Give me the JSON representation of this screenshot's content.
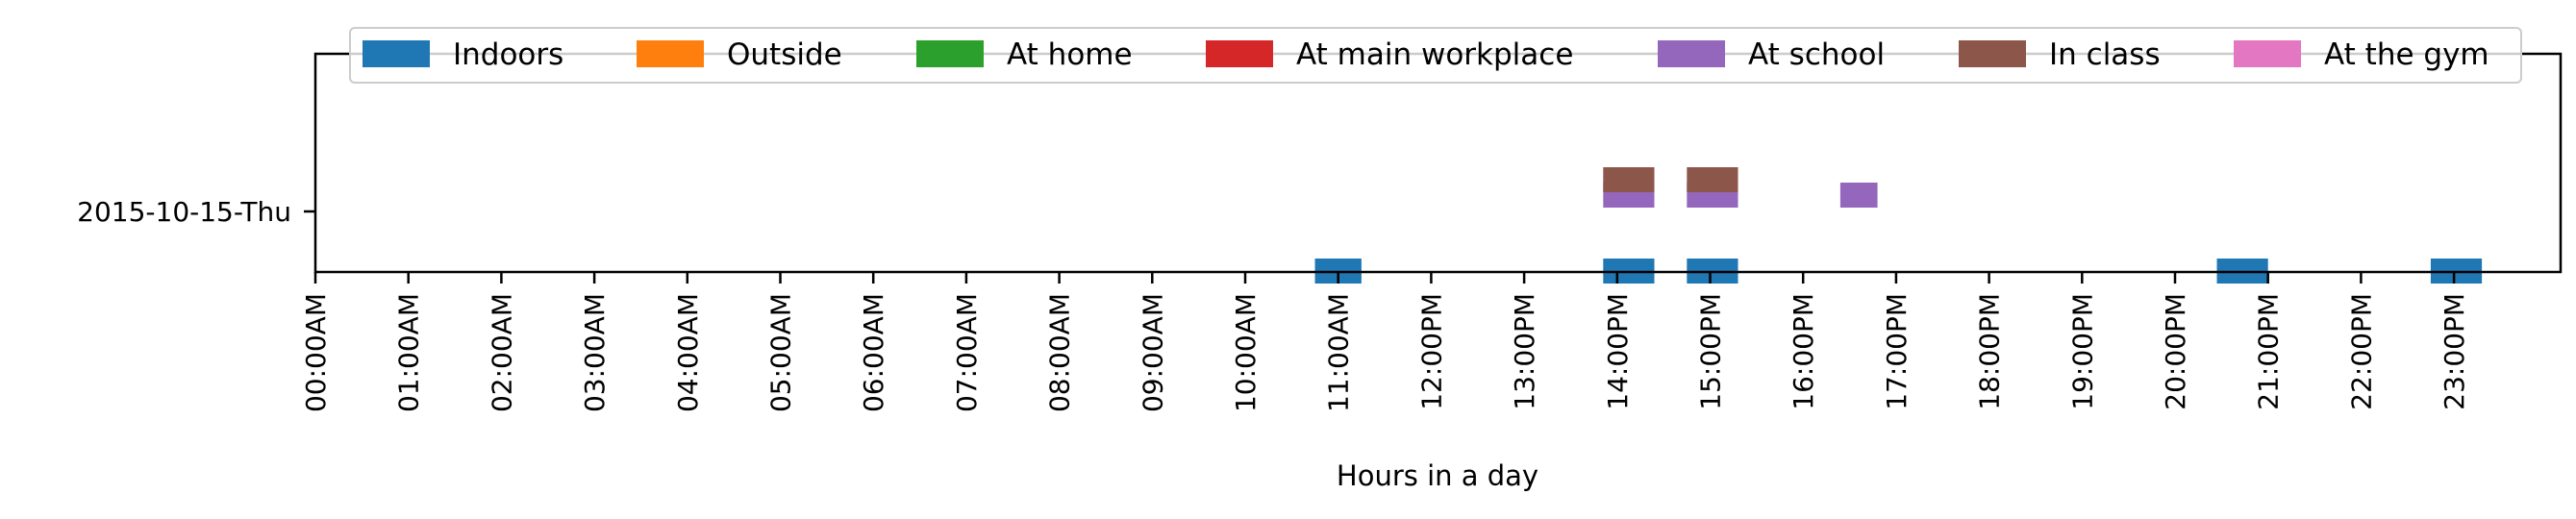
{
  "chart_data": {
    "type": "bar",
    "subtype": "timeline",
    "title": "",
    "xlabel": "Hours in a day",
    "ylabel": "",
    "x_unit": "hour of day",
    "xlim": [
      0,
      24
    ],
    "x_ticks": [
      {
        "hour": 0,
        "label": "00:00AM"
      },
      {
        "hour": 1,
        "label": "01:00AM"
      },
      {
        "hour": 2,
        "label": "02:00AM"
      },
      {
        "hour": 3,
        "label": "03:00AM"
      },
      {
        "hour": 4,
        "label": "04:00AM"
      },
      {
        "hour": 5,
        "label": "05:00AM"
      },
      {
        "hour": 6,
        "label": "06:00AM"
      },
      {
        "hour": 7,
        "label": "07:00AM"
      },
      {
        "hour": 8,
        "label": "08:00AM"
      },
      {
        "hour": 9,
        "label": "09:00AM"
      },
      {
        "hour": 10,
        "label": "10:00AM"
      },
      {
        "hour": 11,
        "label": "11:00AM"
      },
      {
        "hour": 12,
        "label": "12:00PM"
      },
      {
        "hour": 13,
        "label": "13:00PM"
      },
      {
        "hour": 14,
        "label": "14:00PM"
      },
      {
        "hour": 15,
        "label": "15:00PM"
      },
      {
        "hour": 16,
        "label": "16:00PM"
      },
      {
        "hour": 17,
        "label": "17:00PM"
      },
      {
        "hour": 18,
        "label": "18:00PM"
      },
      {
        "hour": 19,
        "label": "19:00PM"
      },
      {
        "hour": 20,
        "label": "20:00PM"
      },
      {
        "hour": 21,
        "label": "21:00PM"
      },
      {
        "hour": 22,
        "label": "22:00PM"
      },
      {
        "hour": 23,
        "label": "23:00PM"
      }
    ],
    "days": [
      "2015-10-15-Thu"
    ],
    "grid": false,
    "legend_position": "top",
    "series": [
      {
        "name": "Indoors",
        "color": "#1f77b4",
        "lane": 0,
        "intervals": [
          [
            10.75,
            11.25
          ],
          [
            13.85,
            14.4
          ],
          [
            14.75,
            15.3
          ],
          [
            20.45,
            21.0
          ],
          [
            22.75,
            23.3
          ]
        ]
      },
      {
        "name": "Outside",
        "color": "#ff7f0e",
        "lane": 1,
        "intervals": []
      },
      {
        "name": "At home",
        "color": "#2ca02c",
        "lane": 2,
        "intervals": []
      },
      {
        "name": "At main workplace",
        "color": "#d62728",
        "lane": 3,
        "intervals": []
      },
      {
        "name": "At school",
        "color": "#9467bd",
        "lane": 4,
        "intervals": [
          [
            13.85,
            14.4
          ],
          [
            14.75,
            15.3
          ],
          [
            16.4,
            16.8
          ]
        ]
      },
      {
        "name": "In class",
        "color": "#8c564b",
        "lane": 5,
        "intervals": [
          [
            13.85,
            14.4
          ],
          [
            14.75,
            15.3
          ]
        ]
      },
      {
        "name": "At the gym",
        "color": "#e377c2",
        "lane": 6,
        "intervals": []
      }
    ]
  }
}
